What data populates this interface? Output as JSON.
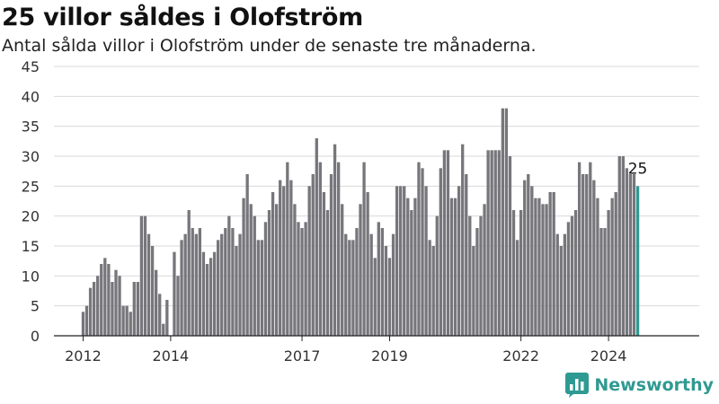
{
  "header": {
    "title": "25 villor såldes i Olofström",
    "subtitle": "Antal sålda villor i Olofström under de senaste tre månaderna."
  },
  "brand": {
    "name": "Newsworthy",
    "logo_icon": "bar-chart-speech-bubble-icon",
    "color": "#2f9a92"
  },
  "chart_data": {
    "type": "bar",
    "title": "25 villor såldes i Olofström",
    "subtitle": "Antal sålda villor i Olofström under de senaste tre månaderna.",
    "xlabel": "",
    "ylabel": "",
    "ylim": [
      0,
      45
    ],
    "yticks": [
      0,
      5,
      10,
      15,
      20,
      25,
      30,
      35,
      40,
      45
    ],
    "grid": true,
    "bar_color": "#76767b",
    "highlight_color": "#2f9a92",
    "highlight_label": "25",
    "xtick_labels": [
      {
        "label": "2012",
        "index": 0
      },
      {
        "label": "2014",
        "index": 24
      },
      {
        "label": "2017",
        "index": 60
      },
      {
        "label": "2019",
        "index": 84
      },
      {
        "label": "2022",
        "index": 120
      },
      {
        "label": "2024",
        "index": 144
      }
    ],
    "values": [
      4,
      5,
      8,
      9,
      10,
      12,
      13,
      12,
      9,
      11,
      10,
      5,
      5,
      4,
      9,
      9,
      20,
      20,
      17,
      15,
      11,
      7,
      2,
      6,
      0,
      14,
      10,
      16,
      17,
      21,
      18,
      17,
      18,
      14,
      12,
      13,
      14,
      16,
      17,
      18,
      20,
      18,
      15,
      17,
      23,
      27,
      22,
      20,
      16,
      16,
      19,
      21,
      24,
      22,
      26,
      25,
      29,
      26,
      22,
      19,
      18,
      19,
      25,
      27,
      33,
      29,
      24,
      21,
      27,
      32,
      29,
      22,
      17,
      16,
      16,
      18,
      22,
      29,
      24,
      17,
      13,
      19,
      18,
      15,
      13,
      17,
      25,
      25,
      25,
      23,
      21,
      23,
      29,
      28,
      25,
      16,
      15,
      20,
      28,
      31,
      31,
      23,
      23,
      25,
      32,
      27,
      20,
      15,
      18,
      20,
      22,
      31,
      31,
      31,
      31,
      38,
      38,
      30,
      21,
      16,
      21,
      26,
      27,
      25,
      23,
      23,
      22,
      22,
      24,
      24,
      17,
      15,
      17,
      19,
      20,
      21,
      29,
      27,
      27,
      29,
      26,
      23,
      18,
      18,
      21,
      23,
      24,
      30,
      30,
      28,
      27,
      27,
      25
    ]
  }
}
